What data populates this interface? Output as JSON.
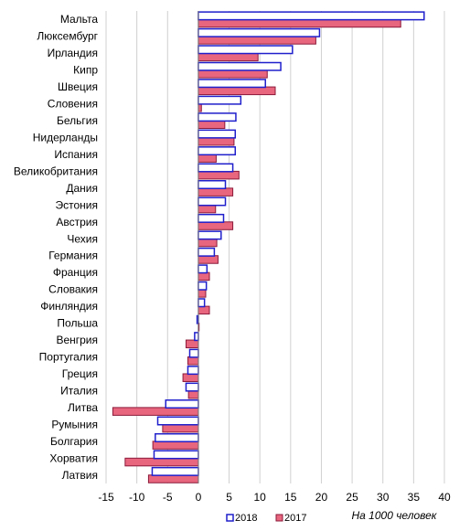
{
  "chart_data": {
    "type": "bar",
    "orientation": "horizontal",
    "categories": [
      "Мальта",
      "Люксембург",
      "Ирландия",
      "Кипр",
      "Швеция",
      "Словения",
      "Бельгия",
      "Нидерланды",
      "Испания",
      "Великобритания",
      "Дания",
      "Эстония",
      "Австрия",
      "Чехия",
      "Германия",
      "Франция",
      "Словакия",
      "Финляндия",
      "Польша",
      "Венгрия",
      "Португалия",
      "Греция",
      "Италия",
      "Литва",
      "Румыния",
      "Болгария",
      "Хорватия",
      "Латвия"
    ],
    "series": [
      {
        "name": "2018",
        "color": "#1f1fcc",
        "fill": "#ffffff",
        "values": [
          36.7,
          19.7,
          15.3,
          13.4,
          10.9,
          6.9,
          6.1,
          6.0,
          6.0,
          5.6,
          4.4,
          4.4,
          4.1,
          3.7,
          2.6,
          1.4,
          1.3,
          1.0,
          -0.2,
          -0.6,
          -1.4,
          -1.7,
          -2.0,
          -5.3,
          -6.6,
          -7.0,
          -7.2,
          -7.5
        ]
      },
      {
        "name": "2017",
        "color": "#8b1a3a",
        "fill": "#e8667e",
        "values": [
          32.9,
          19.1,
          9.7,
          11.2,
          12.5,
          0.5,
          4.3,
          5.8,
          2.9,
          6.6,
          5.6,
          2.8,
          5.6,
          3.0,
          3.2,
          1.8,
          1.2,
          1.8,
          0.0,
          -2.0,
          -1.7,
          -2.5,
          -1.6,
          -13.9,
          -5.8,
          -7.4,
          -11.9,
          -8.1
        ]
      }
    ],
    "xlim": [
      -15,
      40
    ],
    "xticks": [
      "-15",
      "-10",
      "-5",
      "0",
      "5",
      "10",
      "15",
      "20",
      "25",
      "30",
      "35",
      "40"
    ],
    "xlabel": "На 1000 человек",
    "grid": true,
    "legend": "bottom"
  }
}
